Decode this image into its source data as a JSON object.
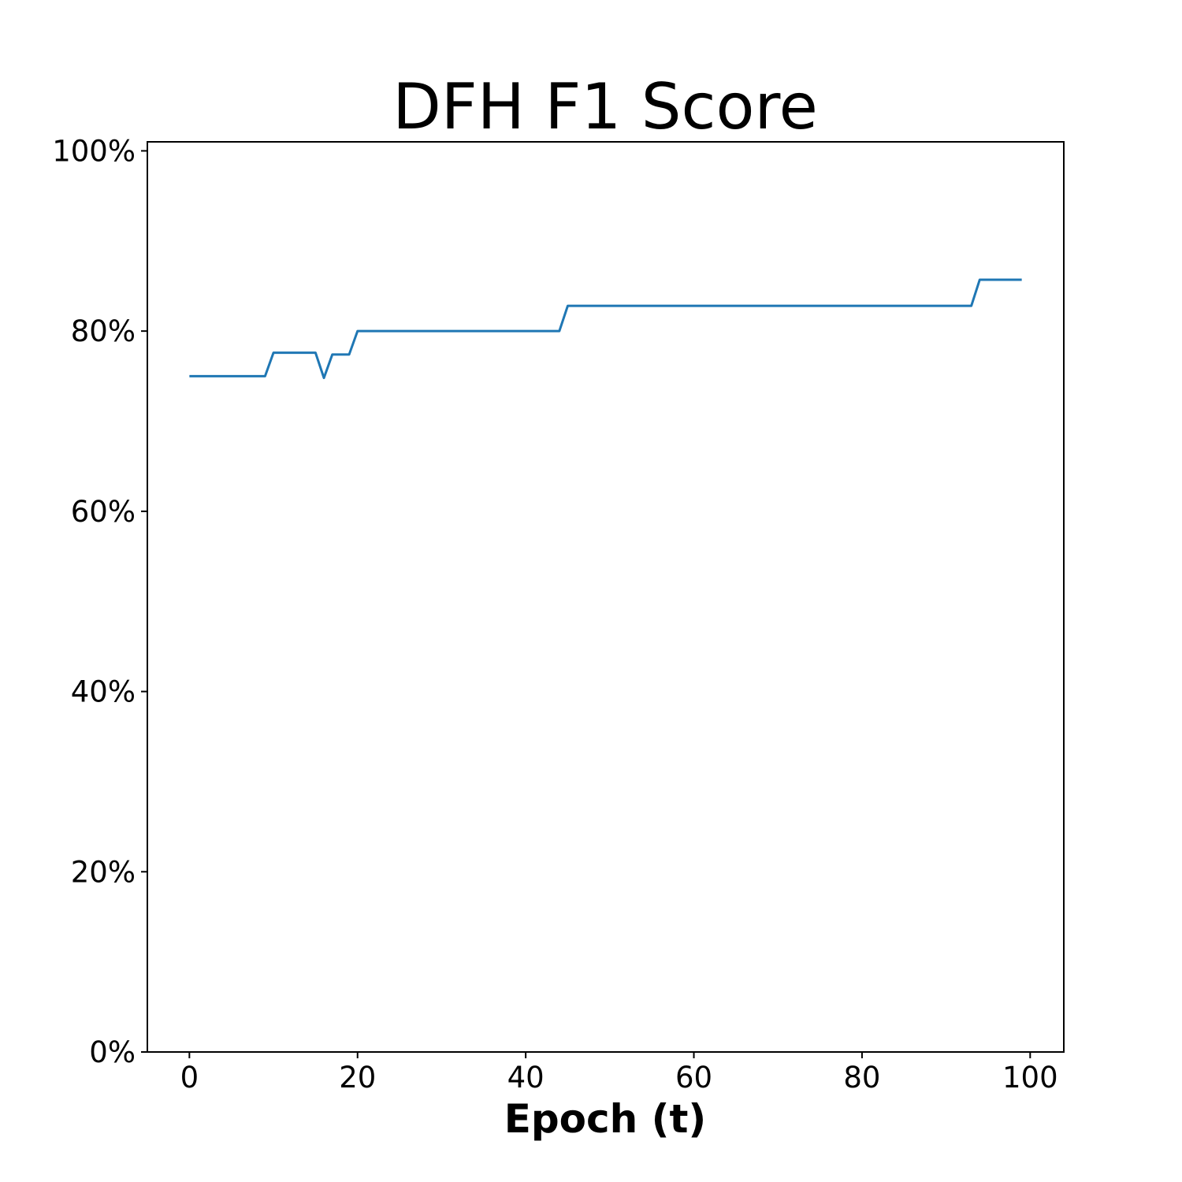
{
  "chart_data": {
    "type": "line",
    "title": "DFH F1 Score",
    "xlabel": "Epoch (t)",
    "ylabel": "",
    "xlim": [
      -5,
      104
    ],
    "ylim": [
      0,
      1.01
    ],
    "x_ticks": [
      0,
      20,
      40,
      60,
      80,
      100
    ],
    "x_tick_labels": [
      "0",
      "20",
      "40",
      "60",
      "80",
      "100"
    ],
    "y_ticks": [
      0,
      0.2,
      0.4,
      0.6,
      0.8,
      1.0
    ],
    "y_tick_labels": [
      "0%",
      "20%",
      "40%",
      "60%",
      "80%",
      "100%"
    ],
    "grid": false,
    "legend": "none",
    "series": [
      {
        "color": "#1f77b4",
        "points": [
          [
            0,
            0.75
          ],
          [
            9,
            0.75
          ],
          [
            10,
            0.776
          ],
          [
            15,
            0.776
          ],
          [
            16,
            0.748
          ],
          [
            17,
            0.774
          ],
          [
            19,
            0.774
          ],
          [
            20,
            0.8
          ],
          [
            44,
            0.8
          ],
          [
            45,
            0.828
          ],
          [
            93,
            0.828
          ],
          [
            94,
            0.857
          ],
          [
            99,
            0.857
          ]
        ]
      }
    ]
  }
}
